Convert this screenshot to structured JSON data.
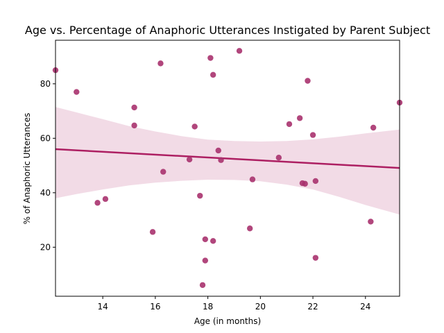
{
  "chart_data": {
    "type": "scatter",
    "title": "Age vs. Percentage of Anaphoric Utterances Instigated by Parent Subject",
    "xlabel": "Age (in months)",
    "ylabel": "% of Anaphoric Utterances",
    "xlim": [
      12.2,
      25.3
    ],
    "ylim": [
      2,
      96
    ],
    "xticks": [
      14,
      16,
      18,
      20,
      22,
      24
    ],
    "yticks": [
      20,
      40,
      60,
      80
    ],
    "grid": false,
    "colors": {
      "points": "#a8326e",
      "line": "#ad1f62",
      "band": "#e9c3d6"
    },
    "points": [
      {
        "x": 12.2,
        "y": 85
      },
      {
        "x": 13.0,
        "y": 77
      },
      {
        "x": 13.8,
        "y": 36.3
      },
      {
        "x": 14.1,
        "y": 37.7
      },
      {
        "x": 15.2,
        "y": 71.3
      },
      {
        "x": 15.2,
        "y": 64.7
      },
      {
        "x": 15.9,
        "y": 25.6
      },
      {
        "x": 16.2,
        "y": 87.5
      },
      {
        "x": 16.3,
        "y": 47.7
      },
      {
        "x": 17.3,
        "y": 52.2
      },
      {
        "x": 17.5,
        "y": 64.3
      },
      {
        "x": 17.7,
        "y": 38.9
      },
      {
        "x": 17.8,
        "y": 6.1
      },
      {
        "x": 17.9,
        "y": 15.1
      },
      {
        "x": 17.9,
        "y": 22.9
      },
      {
        "x": 18.1,
        "y": 89.5
      },
      {
        "x": 18.2,
        "y": 83.3
      },
      {
        "x": 18.2,
        "y": 22.3
      },
      {
        "x": 18.4,
        "y": 55.5
      },
      {
        "x": 18.5,
        "y": 52.0
      },
      {
        "x": 19.2,
        "y": 92.1
      },
      {
        "x": 19.6,
        "y": 26.9
      },
      {
        "x": 19.7,
        "y": 44.9
      },
      {
        "x": 20.7,
        "y": 52.9
      },
      {
        "x": 21.1,
        "y": 65.2
      },
      {
        "x": 21.5,
        "y": 67.4
      },
      {
        "x": 21.6,
        "y": 43.5
      },
      {
        "x": 21.7,
        "y": 43.3
      },
      {
        "x": 21.8,
        "y": 81.1
      },
      {
        "x": 22.0,
        "y": 61.2
      },
      {
        "x": 22.1,
        "y": 44.3
      },
      {
        "x": 22.1,
        "y": 16.1
      },
      {
        "x": 24.2,
        "y": 29.4
      },
      {
        "x": 24.3,
        "y": 63.9
      },
      {
        "x": 25.3,
        "y": 73.1
      }
    ],
    "regression": {
      "x": [
        12.2,
        25.3
      ],
      "y": [
        56.0,
        49.1
      ]
    },
    "confidence_band": {
      "x": [
        12.2,
        13.0,
        14.0,
        15.0,
        16.0,
        17.0,
        18.0,
        19.0,
        20.0,
        21.0,
        22.0,
        23.0,
        24.0,
        25.3
      ],
      "upper": [
        71.5,
        69.5,
        67.0,
        64.5,
        62.5,
        60.8,
        59.5,
        59.0,
        58.8,
        59.0,
        59.6,
        60.6,
        61.8,
        63.2
      ],
      "lower": [
        38.0,
        39.5,
        41.2,
        42.7,
        43.7,
        44.4,
        44.8,
        44.7,
        44.2,
        43.0,
        41.2,
        38.5,
        35.5,
        32.0
      ]
    }
  }
}
